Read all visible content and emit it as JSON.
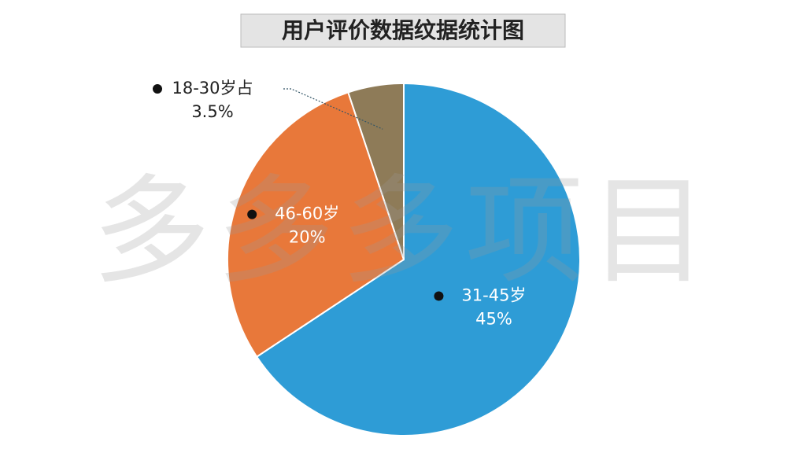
{
  "chart_data": {
    "type": "pie",
    "title": "用户评价数据纹据统计图",
    "watermark": "多多多项目",
    "categories": [
      "31-45岁",
      "46-60岁",
      "18-30岁占"
    ],
    "values": [
      45,
      20,
      3.5
    ],
    "value_labels": [
      "45%",
      "20%",
      "3.5%"
    ],
    "colors": [
      "#2e9cd6",
      "#e8783a",
      "#8e7b58"
    ]
  }
}
